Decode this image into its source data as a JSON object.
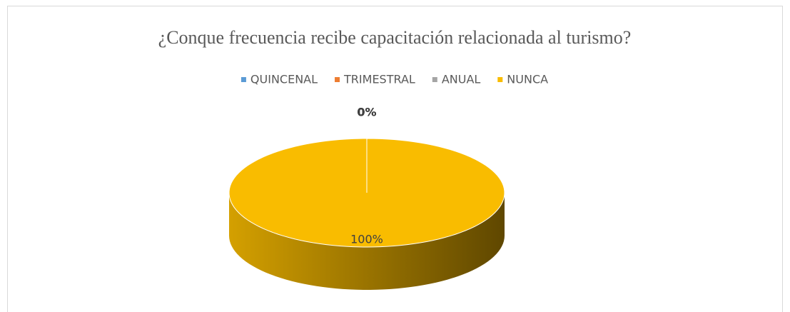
{
  "chart_data": {
    "type": "pie",
    "title": "¿Conque frecuencia recibe capacitación relacionada al turismo?",
    "categories": [
      "QUINCENAL",
      "TRIMESTRAL",
      "ANUAL",
      "NUNCA"
    ],
    "values": [
      0,
      0,
      0,
      100
    ],
    "value_labels": [
      "0%",
      "0%",
      "0%",
      "100%"
    ],
    "colors": [
      "#5b9bd5",
      "#ed7d31",
      "#a5a5a5",
      "#f9bc00"
    ],
    "legend": "top"
  }
}
